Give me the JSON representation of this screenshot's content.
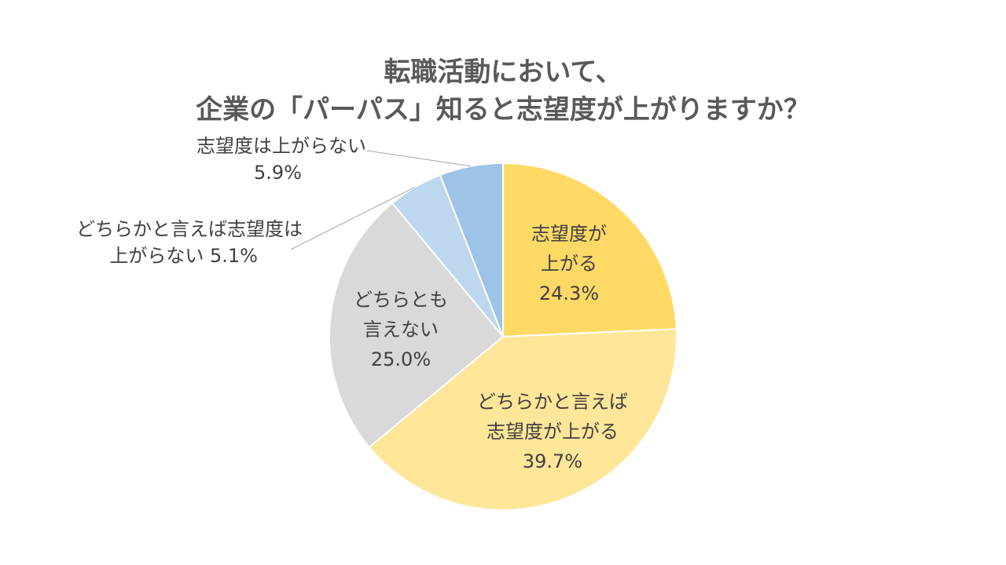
{
  "chart_data": {
    "type": "pie",
    "title_lines": [
      "転職活動において、",
      "企業の「パーパス」知ると志望度が上がりますか？"
    ],
    "slices": [
      {
        "label_lines": [
          "志望度が",
          "上がる"
        ],
        "value": 24.3,
        "value_label": "24.3%",
        "color": "#FFD966"
      },
      {
        "label_lines": [
          "どちらかと言えば",
          "志望度が上がる"
        ],
        "value": 39.7,
        "value_label": "39.7%",
        "color": "#FFE699"
      },
      {
        "label_lines": [
          "どちらとも",
          "言えない"
        ],
        "value": 25.0,
        "value_label": "25.0%",
        "color": "#D9D9D9"
      },
      {
        "label_lines": [
          "どちらかと言えば志望度は",
          "上がらない"
        ],
        "value": 5.1,
        "value_label": "5.1%",
        "color": "#BDD7EE"
      },
      {
        "label_lines": [
          "志望度は上がらない"
        ],
        "value": 5.9,
        "value_label": "5.9%",
        "color": "#9DC3E6"
      }
    ],
    "start": "12 o'clock",
    "direction": "clockwise",
    "legend": "none"
  }
}
